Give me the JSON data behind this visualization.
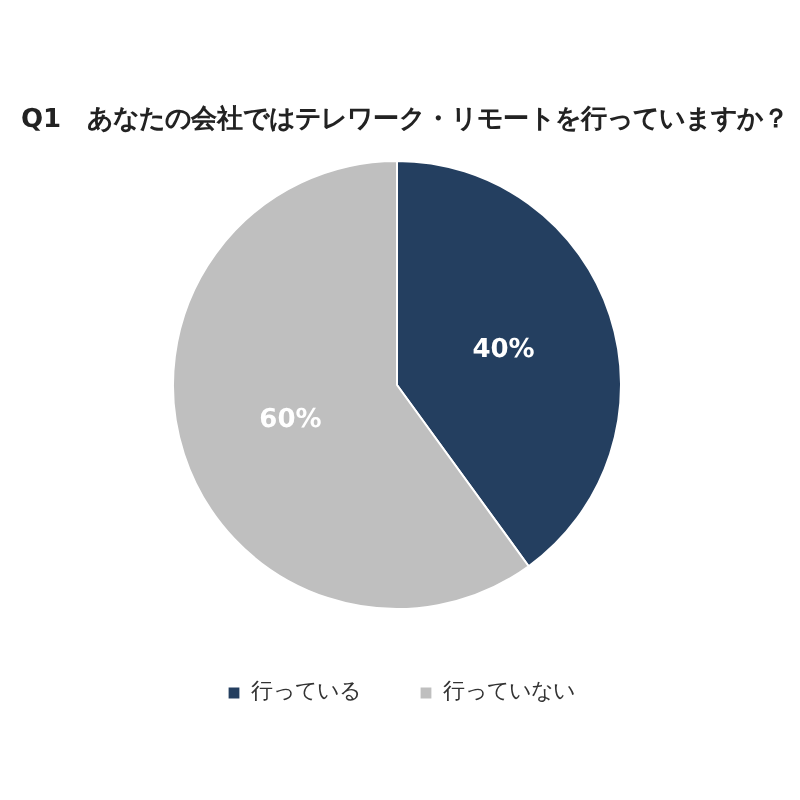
{
  "chart_data": {
    "type": "pie",
    "title": "Q1　あなたの会社ではテレワーク・リモートを行っていますか？",
    "categories": [
      "行っている",
      "行っていない"
    ],
    "values": [
      40,
      60
    ],
    "colors": [
      "#243f60",
      "#bfbfbf"
    ],
    "value_labels": [
      "40%",
      "60%"
    ],
    "legend": "bottom"
  }
}
